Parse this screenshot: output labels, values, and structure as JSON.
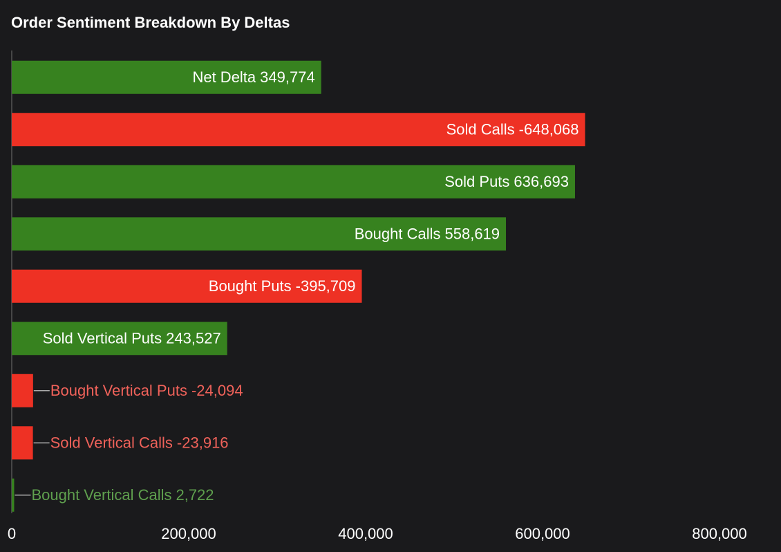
{
  "chart_data": {
    "type": "bar",
    "orientation": "horizontal",
    "title": "Order Sentiment Breakdown By Deltas",
    "categories": [
      "Net Delta",
      "Sold Calls",
      "Sold Puts",
      "Bought Calls",
      "Bought Puts",
      "Sold Vertical Puts",
      "Bought Vertical Puts",
      "Sold Vertical Calls",
      "Bought Vertical Calls"
    ],
    "values": [
      349774,
      -648068,
      636693,
      558619,
      -395709,
      243527,
      -24094,
      -23916,
      2722
    ],
    "value_labels": [
      "349,774",
      "-648,068",
      "636,693",
      "558,619",
      "-395,709",
      "243,527",
      "-24,094",
      "-23,916",
      "2,722"
    ],
    "colors": [
      "#37821f",
      "#ee3124",
      "#37821f",
      "#37821f",
      "#ee3124",
      "#37821f",
      "#ee3124",
      "#ee3124",
      "#37821f"
    ],
    "xlim": [
      0,
      800000
    ],
    "xticks": [
      0,
      {
        "value": 200000,
        "label": "200,000"
      },
      {
        "value": 400000,
        "label": "400,000"
      },
      {
        "value": 600000,
        "label": "600,000"
      },
      {
        "value": 800000,
        "label": "800,000"
      }
    ]
  }
}
